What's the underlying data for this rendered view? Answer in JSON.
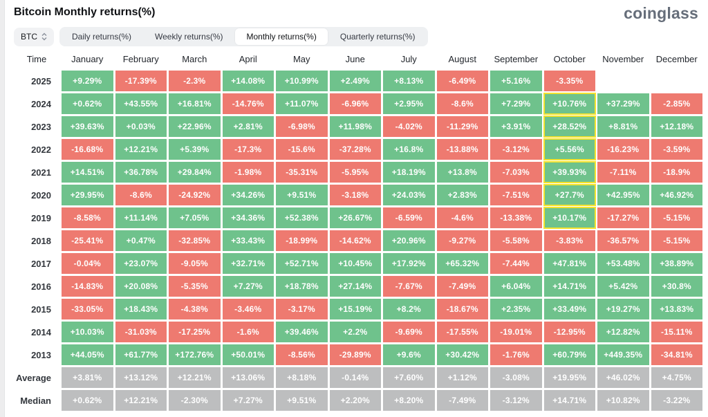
{
  "page": {
    "title": "Bitcoin Monthly returns(%)",
    "brand": "coinglass"
  },
  "toolbar": {
    "symbol": "BTC",
    "updown_icon": "sort-updown",
    "tabs": [
      {
        "label": "Daily returns(%)",
        "selected": false
      },
      {
        "label": "Weekly returns(%)",
        "selected": false
      },
      {
        "label": "Monthly returns(%)",
        "selected": true
      },
      {
        "label": "Quarterly returns(%)",
        "selected": false
      }
    ]
  },
  "chart_data": {
    "type": "heatmap",
    "title": "Bitcoin Monthly returns(%)",
    "columns": [
      "Time",
      "January",
      "February",
      "March",
      "April",
      "May",
      "June",
      "July",
      "August",
      "September",
      "October",
      "November",
      "December"
    ],
    "rows": [
      {
        "label": "2025",
        "type": "year",
        "values": [
          "+9.29%",
          "-17.39%",
          "-2.3%",
          "+14.08%",
          "+10.99%",
          "+2.49%",
          "+8.13%",
          "-6.49%",
          "+5.16%",
          "-3.35%",
          "",
          ""
        ]
      },
      {
        "label": "2024",
        "type": "year",
        "values": [
          "+0.62%",
          "+43.55%",
          "+16.81%",
          "-14.76%",
          "+11.07%",
          "-6.96%",
          "+2.95%",
          "-8.6%",
          "+7.29%",
          "+10.76%",
          "+37.29%",
          "-2.85%"
        ]
      },
      {
        "label": "2023",
        "type": "year",
        "values": [
          "+39.63%",
          "+0.03%",
          "+22.96%",
          "+2.81%",
          "-6.98%",
          "+11.98%",
          "-4.02%",
          "-11.29%",
          "+3.91%",
          "+28.52%",
          "+8.81%",
          "+12.18%"
        ]
      },
      {
        "label": "2022",
        "type": "year",
        "values": [
          "-16.68%",
          "+12.21%",
          "+5.39%",
          "-17.3%",
          "-15.6%",
          "-37.28%",
          "+16.8%",
          "-13.88%",
          "-3.12%",
          "+5.56%",
          "-16.23%",
          "-3.59%"
        ]
      },
      {
        "label": "2021",
        "type": "year",
        "values": [
          "+14.51%",
          "+36.78%",
          "+29.84%",
          "-1.98%",
          "-35.31%",
          "-5.95%",
          "+18.19%",
          "+13.8%",
          "-7.03%",
          "+39.93%",
          "-7.11%",
          "-18.9%"
        ]
      },
      {
        "label": "2020",
        "type": "year",
        "values": [
          "+29.95%",
          "-8.6%",
          "-24.92%",
          "+34.26%",
          "+9.51%",
          "-3.18%",
          "+24.03%",
          "+2.83%",
          "-7.51%",
          "+27.7%",
          "+42.95%",
          "+46.92%"
        ]
      },
      {
        "label": "2019",
        "type": "year",
        "values": [
          "-8.58%",
          "+11.14%",
          "+7.05%",
          "+34.36%",
          "+52.38%",
          "+26.67%",
          "-6.59%",
          "-4.6%",
          "-13.38%",
          "+10.17%",
          "-17.27%",
          "-5.15%"
        ]
      },
      {
        "label": "2018",
        "type": "year",
        "values": [
          "-25.41%",
          "+0.47%",
          "-32.85%",
          "+33.43%",
          "-18.99%",
          "-14.62%",
          "+20.96%",
          "-9.27%",
          "-5.58%",
          "-3.83%",
          "-36.57%",
          "-5.15%"
        ]
      },
      {
        "label": "2017",
        "type": "year",
        "values": [
          "-0.04%",
          "+23.07%",
          "-9.05%",
          "+32.71%",
          "+52.71%",
          "+10.45%",
          "+17.92%",
          "+65.32%",
          "-7.44%",
          "+47.81%",
          "+53.48%",
          "+38.89%"
        ]
      },
      {
        "label": "2016",
        "type": "year",
        "values": [
          "-14.83%",
          "+20.08%",
          "-5.35%",
          "+7.27%",
          "+18.78%",
          "+27.14%",
          "-7.67%",
          "-7.49%",
          "+6.04%",
          "+14.71%",
          "+5.42%",
          "+30.8%"
        ]
      },
      {
        "label": "2015",
        "type": "year",
        "values": [
          "-33.05%",
          "+18.43%",
          "-4.38%",
          "-3.46%",
          "-3.17%",
          "+15.19%",
          "+8.2%",
          "-18.67%",
          "+2.35%",
          "+33.49%",
          "+19.27%",
          "+13.83%"
        ]
      },
      {
        "label": "2014",
        "type": "year",
        "values": [
          "+10.03%",
          "-31.03%",
          "-17.25%",
          "-1.6%",
          "+39.46%",
          "+2.2%",
          "-9.69%",
          "-17.55%",
          "-19.01%",
          "-12.95%",
          "+12.82%",
          "-15.11%"
        ]
      },
      {
        "label": "2013",
        "type": "year",
        "values": [
          "+44.05%",
          "+61.77%",
          "+172.76%",
          "+50.01%",
          "-8.56%",
          "-29.89%",
          "+9.6%",
          "+30.42%",
          "-1.76%",
          "+60.79%",
          "+449.35%",
          "-34.81%"
        ]
      },
      {
        "label": "Average",
        "type": "summary",
        "values": [
          "+3.81%",
          "+13.12%",
          "+12.21%",
          "+13.06%",
          "+8.18%",
          "-0.14%",
          "+7.60%",
          "+1.12%",
          "-3.08%",
          "+19.95%",
          "+46.02%",
          "+4.75%"
        ]
      },
      {
        "label": "Median",
        "type": "summary",
        "values": [
          "+0.62%",
          "+12.21%",
          "-2.30%",
          "+7.27%",
          "+9.51%",
          "+2.20%",
          "+8.20%",
          "-7.49%",
          "-3.12%",
          "+14.71%",
          "+10.82%",
          "-3.22%"
        ]
      }
    ],
    "highlight": {
      "column": "October",
      "column_index": 9,
      "row_labels": [
        "2024",
        "2023",
        "2022",
        "2021",
        "2020",
        "2019"
      ]
    },
    "colors": {
      "positive": "#6fc28c",
      "negative": "#ee7a70",
      "summary": "#bdbebf",
      "highlight_border": "#f5e32d"
    },
    "legend_position": "none",
    "grid": false
  }
}
